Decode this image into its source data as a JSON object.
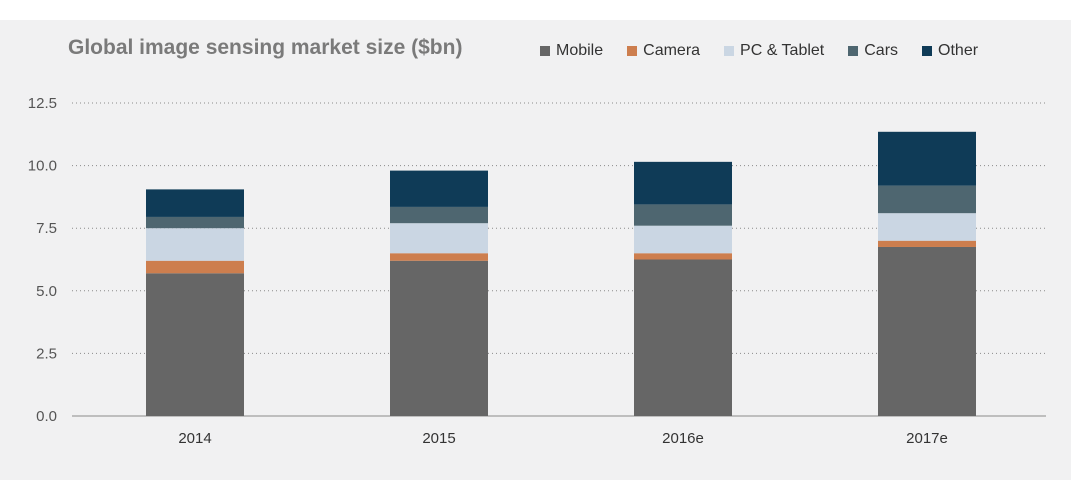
{
  "chart_data": {
    "type": "bar",
    "stacked": true,
    "title": "Global image sensing market size ($bn)",
    "xlabel": "",
    "ylabel": "",
    "categories": [
      "2014",
      "2015",
      "2016e",
      "2017e"
    ],
    "ylim": [
      0,
      12.5
    ],
    "yticks": [
      "0.0",
      "2.5",
      "5.0",
      "7.5",
      "10.0",
      "12.5"
    ],
    "grid": "dotted-horizontal",
    "legend_position": "top",
    "series": [
      {
        "name": "Mobile",
        "color": "#666666",
        "values": [
          5.7,
          6.2,
          6.25,
          6.75
        ]
      },
      {
        "name": "Camera",
        "color": "#cd7e4e",
        "values": [
          0.5,
          0.3,
          0.25,
          0.25
        ]
      },
      {
        "name": "PC & Tablet",
        "color": "#cad6e3",
        "values": [
          1.3,
          1.2,
          1.1,
          1.1
        ]
      },
      {
        "name": "Cars",
        "color": "#4e6670",
        "values": [
          0.45,
          0.65,
          0.85,
          1.1
        ]
      },
      {
        "name": "Other",
        "color": "#0f3b57",
        "values": [
          1.1,
          1.45,
          1.7,
          2.15
        ]
      }
    ]
  }
}
